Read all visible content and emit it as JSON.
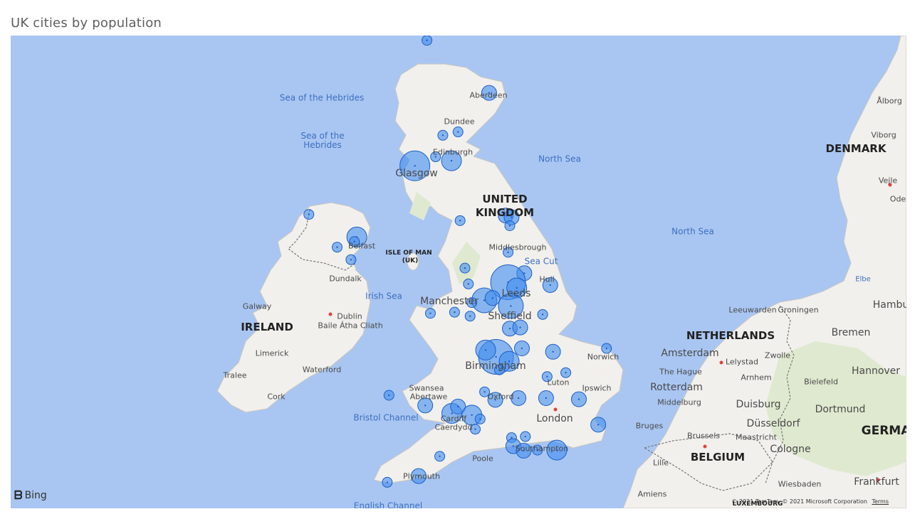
{
  "visual": {
    "title": "UK cities by population"
  },
  "map": {
    "provider_logo": "Bing",
    "copyright": "© 2021 TomTom, © 2021 Microsoft Corporation",
    "terms_label": "Terms",
    "labels": {
      "sea_hebrides_1": "Sea of the Hebrides",
      "sea_hebrides_2": "Sea of the Hebrides",
      "north_sea_1": "North Sea",
      "north_sea_2": "North Sea",
      "irish_sea": "Irish Sea",
      "sea_cut": "Sea Cut",
      "bristol_channel": "Bristol Channel",
      "english_channel": "English Channel",
      "elbe": "Elbe",
      "uk_1": "UNITED",
      "uk_2": "KINGDOM",
      "ireland": "IRELAND",
      "isle_of_man": "ISLE OF MAN",
      "isle_of_man_sub": "(UK)",
      "denmark": "DENMARK",
      "netherlands": "NETHERLANDS",
      "belgium": "BELGIUM",
      "germany": "GERMA",
      "luxembourg": "LUXEMBOURG",
      "aberdeen": "Aberdeen",
      "dundee": "Dundee",
      "edinburgh": "Edinburgh",
      "glasgow": "Glasgow",
      "belfast": "Belfast",
      "dundalk": "Dundalk",
      "galway": "Galway",
      "dublin": "Dublin",
      "baile_atha_cliath": "Baile Átha Cliath",
      "limerick": "Limerick",
      "waterford": "Waterford",
      "tralee": "Tralee",
      "cork": "Cork",
      "middlesbrough": "Middlesbrough",
      "hull": "Hull",
      "leeds": "Leeds",
      "manchester": "Manchester",
      "sheffield": "Sheffield",
      "birmingham": "Birmingham",
      "norwich": "Norwich",
      "luton": "Luton",
      "ipswich": "Ipswich",
      "oxford": "Oxford",
      "london": "London",
      "swansea": "Swansea",
      "abertawe": "Abertawe",
      "cardiff": "Cardiff",
      "caerdydd": "Caerdydd",
      "poole": "Poole",
      "southampton": "Southampton",
      "plymouth": "Plymouth",
      "alborg": "Ålborg",
      "viborg": "Viborg",
      "vejle": "Vejle",
      "ode": "Ode",
      "leeuwarden": "Leeuwarden",
      "groningen": "Groningen",
      "hambu": "Hambu",
      "bremen": "Bremen",
      "amsterdam": "Amsterdam",
      "zwolle": "Zwolle",
      "lelystad": "Lelystad",
      "hannover": "Hannover",
      "the_hague": "The Hague",
      "arnhem": "Arnhem",
      "bielefeld": "Bielefeld",
      "rotterdam": "Rotterdam",
      "middelburg": "Middelburg",
      "duisburg": "Duisburg",
      "dortmund": "Dortmund",
      "dusseldorf": "Düsseldorf",
      "bruges": "Bruges",
      "brussels": "Brussels",
      "maastricht": "Maastricht",
      "cologne": "Cologne",
      "lille": "Lille",
      "wiesbaden": "Wiesbaden",
      "frankfurt": "Frankfurt",
      "amiens": "Amiens"
    }
  },
  "bubbles": [
    {
      "lon": -3.9,
      "lat": 58.08,
      "size": 1
    },
    {
      "lon": -2.1,
      "lat": 57.15,
      "size": 2
    },
    {
      "lon": -3.0,
      "lat": 56.46,
      "size": 1
    },
    {
      "lon": -3.44,
      "lat": 56.4,
      "size": 1
    },
    {
      "lon": -3.65,
      "lat": 56.02,
      "size": 1
    },
    {
      "lon": -3.19,
      "lat": 55.95,
      "size": 3
    },
    {
      "lon": -4.25,
      "lat": 55.86,
      "size": 5
    },
    {
      "lon": -1.62,
      "lat": 54.98,
      "size": 2
    },
    {
      "lon": -1.45,
      "lat": 54.95,
      "size": 2
    },
    {
      "lon": -1.5,
      "lat": 54.8,
      "size": 1
    },
    {
      "lon": -2.94,
      "lat": 54.89,
      "size": 1
    },
    {
      "lon": -7.32,
      "lat": 55.0,
      "size": 1
    },
    {
      "lon": -5.93,
      "lat": 54.6,
      "size": 3
    },
    {
      "lon": -6.0,
      "lat": 54.52,
      "size": 1
    },
    {
      "lon": -6.5,
      "lat": 54.42,
      "size": 1
    },
    {
      "lon": -6.1,
      "lat": 54.2,
      "size": 1
    },
    {
      "lon": -1.55,
      "lat": 54.33,
      "size": 1
    },
    {
      "lon": -2.8,
      "lat": 54.05,
      "size": 1
    },
    {
      "lon": -1.08,
      "lat": 53.96,
      "size": 2
    },
    {
      "lon": -0.33,
      "lat": 53.75,
      "size": 2
    },
    {
      "lon": -2.7,
      "lat": 53.77,
      "size": 1
    },
    {
      "lon": -1.55,
      "lat": 53.8,
      "size": 6
    },
    {
      "lon": -1.3,
      "lat": 53.7,
      "size": 3
    },
    {
      "lon": -2.24,
      "lat": 53.48,
      "size": 4
    },
    {
      "lon": -2.6,
      "lat": 53.44,
      "size": 1
    },
    {
      "lon": -2.0,
      "lat": 53.52,
      "size": 2
    },
    {
      "lon": -1.47,
      "lat": 53.38,
      "size": 4
    },
    {
      "lon": -3.8,
      "lat": 53.25,
      "size": 1
    },
    {
      "lon": -3.1,
      "lat": 53.27,
      "size": 1
    },
    {
      "lon": -2.65,
      "lat": 53.2,
      "size": 1
    },
    {
      "lon": -0.55,
      "lat": 53.23,
      "size": 1
    },
    {
      "lon": -1.5,
      "lat": 52.98,
      "size": 2
    },
    {
      "lon": -1.2,
      "lat": 53.0,
      "size": 2
    },
    {
      "lon": -1.15,
      "lat": 52.63,
      "size": 2
    },
    {
      "lon": -1.9,
      "lat": 52.48,
      "size": 6
    },
    {
      "lon": -2.2,
      "lat": 52.6,
      "size": 3
    },
    {
      "lon": -1.52,
      "lat": 52.4,
      "size": 3
    },
    {
      "lon": -1.8,
      "lat": 52.25,
      "size": 1
    },
    {
      "lon": -0.25,
      "lat": 52.57,
      "size": 2
    },
    {
      "lon": 1.3,
      "lat": 52.63,
      "size": 1
    },
    {
      "lon": 0.12,
      "lat": 52.2,
      "size": 1
    },
    {
      "lon": -0.42,
      "lat": 52.13,
      "size": 1
    },
    {
      "lon": -2.23,
      "lat": 51.86,
      "size": 1
    },
    {
      "lon": -1.92,
      "lat": 51.72,
      "size": 2
    },
    {
      "lon": -1.25,
      "lat": 51.75,
      "size": 2
    },
    {
      "lon": -0.45,
      "lat": 51.75,
      "size": 2
    },
    {
      "lon": 0.5,
      "lat": 51.73,
      "size": 2
    },
    {
      "lon": -5.0,
      "lat": 51.8,
      "size": 1
    },
    {
      "lon": -3.95,
      "lat": 51.62,
      "size": 2
    },
    {
      "lon": -3.18,
      "lat": 51.48,
      "size": 3
    },
    {
      "lon": -3.0,
      "lat": 51.6,
      "size": 2
    },
    {
      "lon": -2.6,
      "lat": 51.45,
      "size": 3
    },
    {
      "lon": -2.36,
      "lat": 51.38,
      "size": 1
    },
    {
      "lon": -2.5,
      "lat": 51.2,
      "size": 1
    },
    {
      "lon": 1.06,
      "lat": 51.28,
      "size": 2
    },
    {
      "lon": -1.45,
      "lat": 51.05,
      "size": 1
    },
    {
      "lon": -1.05,
      "lat": 51.07,
      "size": 1
    },
    {
      "lon": -1.4,
      "lat": 50.9,
      "size": 2
    },
    {
      "lon": -1.1,
      "lat": 50.82,
      "size": 2
    },
    {
      "lon": -0.7,
      "lat": 50.83,
      "size": 1
    },
    {
      "lon": -0.14,
      "lat": 50.83,
      "size": 3
    },
    {
      "lon": -3.53,
      "lat": 50.72,
      "size": 1
    },
    {
      "lon": -4.14,
      "lat": 50.37,
      "size": 2
    },
    {
      "lon": -5.05,
      "lat": 50.26,
      "size": 1
    }
  ]
}
